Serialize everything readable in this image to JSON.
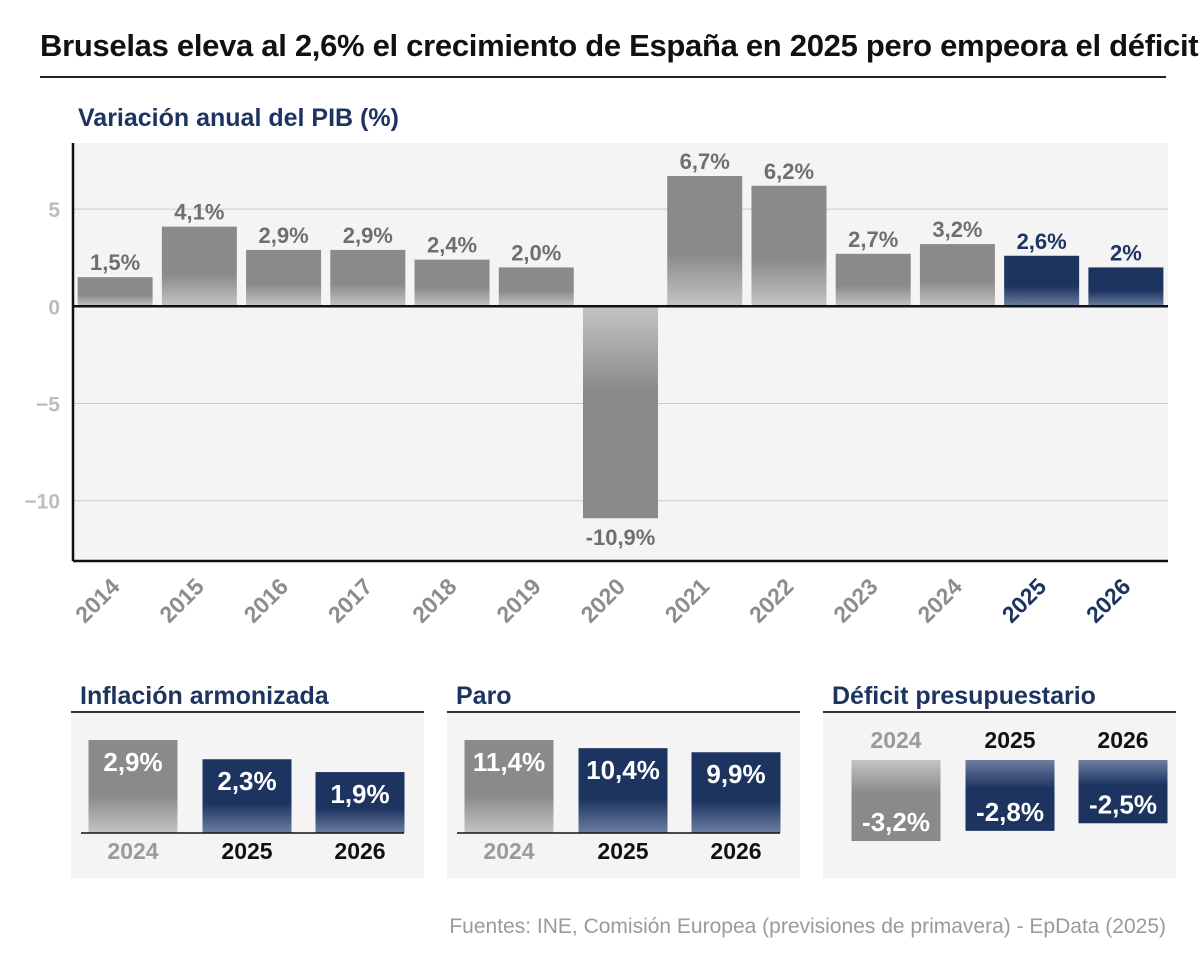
{
  "title": "Bruselas eleva al 2,6% el crecimiento de España en 2025 pero empeora el déficit",
  "source": "Fuentes: INE, Comisión Europea (previsiones de primavera) - EpData (2025)",
  "colors": {
    "historical": "#8a8a8a",
    "forecast": "#1d3461",
    "panel": "#f4f4f4"
  },
  "chart_data": [
    {
      "type": "bar",
      "title": "Variación anual del PIB (%)",
      "categories": [
        "2014",
        "2015",
        "2016",
        "2017",
        "2018",
        "2019",
        "2020",
        "2021",
        "2022",
        "2023",
        "2024",
        "2025",
        "2026"
      ],
      "values": [
        1.5,
        4.1,
        2.9,
        2.9,
        2.4,
        2.0,
        -10.9,
        6.7,
        6.2,
        2.7,
        3.2,
        2.6,
        2.0
      ],
      "value_labels": [
        "1,5%",
        "4,1%",
        "2,9%",
        "2,9%",
        "2,4%",
        "2,0%",
        "-10,9%",
        "6,7%",
        "6,2%",
        "2,7%",
        "3,2%",
        "2,6%",
        "2%"
      ],
      "forecast": [
        false,
        false,
        false,
        false,
        false,
        false,
        false,
        false,
        false,
        false,
        false,
        true,
        true
      ],
      "yticks": [
        5,
        0,
        -5,
        -10
      ],
      "ytick_labels": [
        "5",
        "0",
        "−5",
        "−10"
      ],
      "ylim": [
        -13.1,
        8.4
      ],
      "grid": true
    },
    {
      "type": "bar",
      "title": "Inflación armonizada",
      "categories": [
        "2024",
        "2025",
        "2026"
      ],
      "values": [
        2.9,
        2.3,
        1.9
      ],
      "value_labels": [
        "2,9%",
        "2,3%",
        "1,9%"
      ],
      "forecast": [
        false,
        true,
        true
      ]
    },
    {
      "type": "bar",
      "title": "Paro",
      "categories": [
        "2024",
        "2025",
        "2026"
      ],
      "values": [
        11.4,
        10.4,
        9.9
      ],
      "value_labels": [
        "11,4%",
        "10,4%",
        "9,9%"
      ],
      "forecast": [
        false,
        true,
        true
      ]
    },
    {
      "type": "bar",
      "title": "Déficit presupuestario",
      "categories": [
        "2024",
        "2025",
        "2026"
      ],
      "values": [
        -3.2,
        -2.8,
        -2.5
      ],
      "value_labels": [
        "-3,2%",
        "-2,8%",
        "-2,5%"
      ],
      "forecast": [
        false,
        true,
        true
      ]
    }
  ]
}
